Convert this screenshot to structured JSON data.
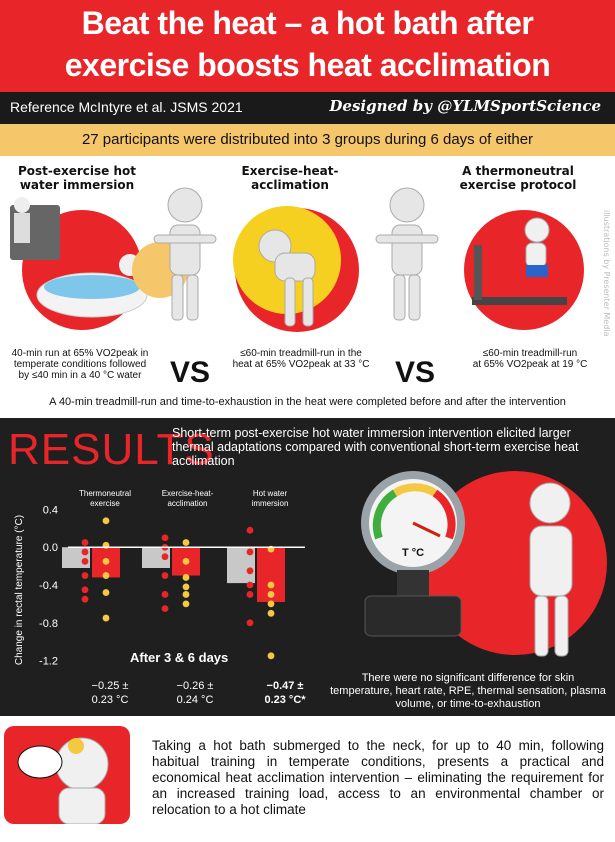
{
  "header": {
    "title_line1": "Beat the heat – a hot bath after",
    "title_line2": "exercise boosts heat acclimation",
    "reference": "Reference McIntyre et al. JSMS 2021",
    "designed_by": "Designed by @YLMSportScience"
  },
  "intro": "27 participants were distributed into 3 groups during 6 days of either",
  "groups": [
    {
      "title_line1": "Post-exercise hot",
      "title_line2": "water immersion",
      "desc": [
        "40-min run at 65% VO2peak in",
        "temperate conditions followed",
        "by ≤40 min in a 40 °C water"
      ]
    },
    {
      "title_line1": "Exercise-heat-",
      "title_line2": "acclimation",
      "desc": [
        "≤60-min treadmill-run in the",
        "heat at 65% VO2peak at 33 °C"
      ]
    },
    {
      "title_line1": "A thermoneutral",
      "title_line2": "exercise protocol",
      "desc": [
        "≤60-min treadmill-run",
        "at 65% VO2peak at 19 °C"
      ]
    }
  ],
  "vs_label": "VS",
  "methods_footnote": "A 40-min treadmill-run and time-to-exhaustion in the heat were completed before and after the intervention",
  "watermark": "illustrations by Presenter Media",
  "results": {
    "title": "RESULTS",
    "summary": "Short-term post-exercise hot water immersion intervention elicited larger thermal adaptations compared with conventional short-term exercise heat acclimation",
    "after_label": "After 3 & 6 days",
    "no_difference": "There were no significant difference for skin temperature, heart rate, RPE, thermal sensation, plasma volume, or time-to-exhaustion",
    "gauge_label": "T °C"
  },
  "chart_data": {
    "type": "bar",
    "ylabel": "Change in rectal temperature (°C)",
    "ylim": [
      -1.3,
      0.5
    ],
    "yticks": [
      "0.4",
      "0.0",
      "-0.4",
      "-0.8",
      "-1.2"
    ],
    "categories": [
      {
        "name_line1": "Thermoneutral",
        "name_line2": "exercise",
        "mean_line1": "−0.25 ±",
        "mean_line2": "0.23 °C"
      },
      {
        "name_line1": "Exercise-heat-",
        "name_line2": "acclimation",
        "mean_line1": "−0.26 ±",
        "mean_line2": "0.24 °C"
      },
      {
        "name_line1": "Hot water",
        "name_line2": "immersion",
        "mean_line1": "−0.47 ±",
        "mean_line2": "0.23 °C*"
      }
    ],
    "series": [
      {
        "name": "Day 3",
        "color": "#c8c8c8",
        "values": [
          -0.22,
          -0.22,
          -0.38
        ],
        "points": [
          [
            0.05,
            -0.05,
            -0.15,
            -0.3,
            -0.45,
            -0.55
          ],
          [
            0.1,
            0.0,
            -0.1,
            -0.3,
            -0.5,
            -0.65
          ],
          [
            0.18,
            -0.05,
            -0.25,
            -0.4,
            -0.5,
            -0.8
          ]
        ]
      },
      {
        "name": "Day 6",
        "color": "#e8262a",
        "values": [
          -0.32,
          -0.3,
          -0.58
        ],
        "points": [
          [
            0.28,
            0.02,
            -0.15,
            -0.3,
            -0.48,
            -0.75
          ],
          [
            0.05,
            -0.15,
            -0.32,
            -0.42,
            -0.5,
            -0.6
          ],
          [
            -0.02,
            -0.4,
            -0.5,
            -0.6,
            -0.7,
            -1.15
          ]
        ]
      }
    ],
    "colors": {
      "dot_day3": "#e8262a",
      "dot_day6": "#f5c842",
      "axis": "#ffffff"
    }
  },
  "conclusion": "Taking a hot bath submerged to the neck, for up to 40 min, following habitual training in temperate conditions, presents a practical and economical heat acclimation intervention – eliminating the requirement for an increased training load, access to an environmental chamber or relocation to a hot climate",
  "colors": {
    "accent": "#e8262a",
    "band": "#f5c66a",
    "dark": "#1f1f1f"
  }
}
